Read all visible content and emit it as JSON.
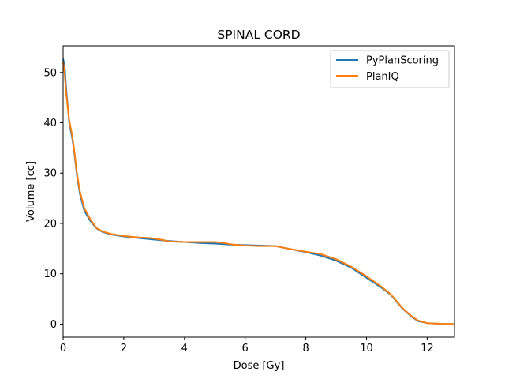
{
  "chart_data": {
    "type": "line",
    "title": "SPINAL CORD",
    "xlabel": "Dose [Gy]",
    "ylabel": "Volume [cc]",
    "xlim": [
      0,
      12.9
    ],
    "ylim": [
      -2.6,
      55.3
    ],
    "xticks": [
      0,
      2,
      4,
      6,
      8,
      10,
      12
    ],
    "yticks": [
      0,
      10,
      20,
      30,
      40,
      50
    ],
    "grid": false,
    "legend_position": "top-right",
    "series": [
      {
        "name": "PyPlanScoring",
        "color": "#1f77b4",
        "points": [
          [
            0,
            52.7
          ],
          [
            0.05,
            51.5
          ],
          [
            0.1,
            47
          ],
          [
            0.2,
            40
          ],
          [
            0.3,
            37
          ],
          [
            0.37,
            34
          ],
          [
            0.45,
            29.8
          ],
          [
            0.55,
            26
          ],
          [
            0.7,
            22.5
          ],
          [
            0.9,
            20.5
          ],
          [
            1.1,
            19
          ],
          [
            1.3,
            18.3
          ],
          [
            1.6,
            17.8
          ],
          [
            2,
            17.4
          ],
          [
            2.5,
            17.1
          ],
          [
            3,
            16.8
          ],
          [
            3.5,
            16.5
          ],
          [
            4,
            16.3
          ],
          [
            4.5,
            16.1
          ],
          [
            5,
            16
          ],
          [
            5.5,
            15.8
          ],
          [
            6,
            15.7
          ],
          [
            6.5,
            15.6
          ],
          [
            7,
            15.5
          ],
          [
            7.5,
            14.9
          ],
          [
            8,
            14.3
          ],
          [
            8.5,
            13.6
          ],
          [
            9,
            12.6
          ],
          [
            9.5,
            11.2
          ],
          [
            10,
            9.2
          ],
          [
            10.5,
            7.2
          ],
          [
            10.8,
            5.8
          ],
          [
            11,
            4.4
          ],
          [
            11.2,
            3
          ],
          [
            11.5,
            1.4
          ],
          [
            11.7,
            0.6
          ],
          [
            12,
            0.2
          ],
          [
            12.5,
            0.05
          ],
          [
            12.9,
            0
          ]
        ]
      },
      {
        "name": "PlanIQ",
        "color": "#ff7f0e",
        "points": [
          [
            0,
            52
          ],
          [
            0.05,
            50
          ],
          [
            0.1,
            46
          ],
          [
            0.2,
            40.5
          ],
          [
            0.3,
            37.5
          ],
          [
            0.37,
            34.5
          ],
          [
            0.45,
            30.2
          ],
          [
            0.55,
            26.5
          ],
          [
            0.7,
            23
          ],
          [
            0.9,
            20.8
          ],
          [
            1.1,
            19.1
          ],
          [
            1.3,
            18.4
          ],
          [
            1.6,
            17.9
          ],
          [
            2,
            17.5
          ],
          [
            2.5,
            17.2
          ],
          [
            2.9,
            17.1
          ],
          [
            3.3,
            16.7
          ],
          [
            3.5,
            16.4
          ],
          [
            4,
            16.3
          ],
          [
            4.5,
            16.3
          ],
          [
            5,
            16.3
          ],
          [
            5.3,
            16.1
          ],
          [
            5.6,
            15.8
          ],
          [
            6,
            15.6
          ],
          [
            6.5,
            15.5
          ],
          [
            7,
            15.5
          ],
          [
            7.5,
            14.9
          ],
          [
            8,
            14.4
          ],
          [
            8.5,
            13.9
          ],
          [
            9,
            12.9
          ],
          [
            9.5,
            11.4
          ],
          [
            10,
            9.5
          ],
          [
            10.5,
            7.4
          ],
          [
            10.8,
            5.9
          ],
          [
            11,
            4.5
          ],
          [
            11.2,
            3.1
          ],
          [
            11.5,
            1.5
          ],
          [
            11.7,
            0.7
          ],
          [
            12,
            0.2
          ],
          [
            12.5,
            0.05
          ],
          [
            12.9,
            0
          ]
        ]
      }
    ]
  }
}
